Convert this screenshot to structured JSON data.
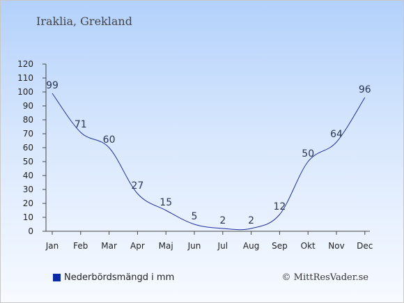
{
  "chart_data": {
    "type": "line",
    "title": "Iraklia, Grekland",
    "categories": [
      "Jan",
      "Feb",
      "Mar",
      "Apr",
      "Maj",
      "Jun",
      "Jul",
      "Aug",
      "Sep",
      "Okt",
      "Nov",
      "Dec"
    ],
    "series": [
      {
        "name": "Nederbördsmängd i mm",
        "values": [
          99,
          71,
          60,
          27,
          15,
          5,
          2,
          2,
          12,
          50,
          64,
          96
        ]
      }
    ],
    "ylim": [
      0,
      120
    ],
    "yticks": [
      0,
      10,
      20,
      30,
      40,
      50,
      60,
      70,
      80,
      90,
      100,
      110,
      120
    ],
    "grid": false,
    "legend": "bottom-left",
    "line_color": "#1f2f9e",
    "legend_color": "#0a2aa6"
  },
  "credit": "© MittResVader.se"
}
